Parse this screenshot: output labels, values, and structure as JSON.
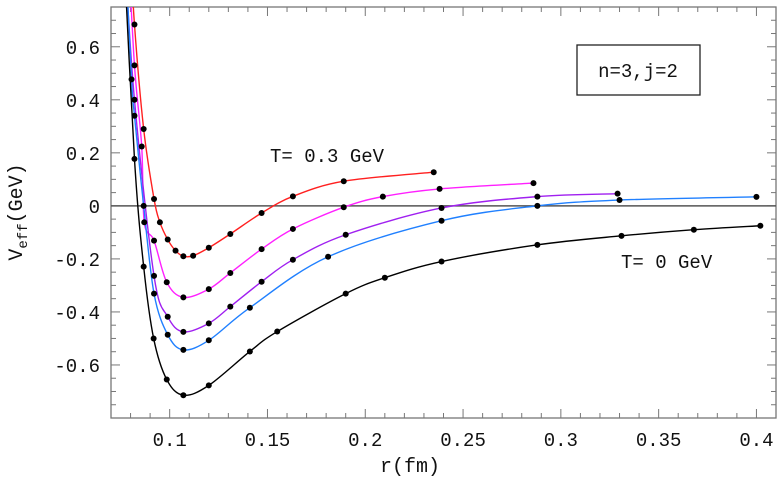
{
  "chart_data": {
    "type": "line",
    "xlabel": "r(fm)",
    "ylabel_main": "V",
    "ylabel_sub": "eff",
    "ylabel_unit": "(GeV)",
    "xlim": [
      0.07,
      0.41
    ],
    "ylim": [
      -0.8,
      0.75
    ],
    "xticks": [
      0.1,
      0.15,
      0.2,
      0.25,
      0.3,
      0.35,
      0.4
    ],
    "xtick_labels": [
      "0.1",
      "0.15",
      "0.2",
      "0.25",
      "0.3",
      "0.35",
      "0.4"
    ],
    "yticks": [
      0.6,
      0.4,
      0.2,
      0,
      -0.2,
      -0.4,
      -0.6
    ],
    "ytick_labels": [
      "0.6",
      "0.4",
      "0.2",
      "0",
      "-0.2",
      "-0.4",
      "-0.6"
    ],
    "grid": false,
    "zero_line": true,
    "legend_box": "n=3,j=2",
    "annotations": [
      "T= 0.3 GeV",
      "T= 0 GeV"
    ],
    "series": [
      {
        "color": "#ff2020",
        "x": [
          0.082,
          0.0867,
          0.092,
          0.095,
          0.099,
          0.103,
          0.107,
          0.112,
          0.12,
          0.131,
          0.147,
          0.163,
          0.189,
          0.235
        ],
        "y": [
          0.684,
          0.29,
          0.026,
          -0.062,
          -0.127,
          -0.169,
          -0.19,
          -0.188,
          -0.158,
          -0.106,
          -0.027,
          0.036,
          0.093,
          0.127
        ]
      },
      {
        "color": "#ff20ff",
        "x": [
          0.082,
          0.0857,
          0.087,
          0.092,
          0.0985,
          0.107,
          0.12,
          0.131,
          0.147,
          0.163,
          0.189,
          0.209,
          0.238,
          0.286
        ],
        "y": [
          0.53,
          0.224,
          -0.062,
          -0.131,
          -0.288,
          -0.345,
          -0.314,
          -0.253,
          -0.163,
          -0.087,
          -0.005,
          0.035,
          0.064,
          0.086
        ]
      },
      {
        "color": "#a020f0",
        "x": [
          0.082,
          0.092,
          0.099,
          0.107,
          0.12,
          0.131,
          0.147,
          0.163,
          0.19,
          0.239,
          0.288,
          0.329
        ],
        "y": [
          0.4,
          -0.264,
          -0.418,
          -0.475,
          -0.443,
          -0.38,
          -0.286,
          -0.203,
          -0.109,
          -0.008,
          0.035,
          0.046
        ]
      },
      {
        "color": "#2080ff",
        "x": [
          0.0805,
          0.082,
          0.0867,
          0.092,
          0.099,
          0.107,
          0.12,
          0.141,
          0.181,
          0.239,
          0.288,
          0.33,
          0.4
        ],
        "y": [
          0.477,
          0.34,
          0.0,
          -0.331,
          -0.486,
          -0.543,
          -0.507,
          -0.384,
          -0.192,
          -0.056,
          0.0,
          0.022,
          0.034
        ]
      },
      {
        "color": "#000000",
        "x": [
          0.082,
          0.0867,
          0.0918,
          0.0985,
          0.107,
          0.12,
          0.141,
          0.155,
          0.19,
          0.21,
          0.239,
          0.288,
          0.331,
          0.368,
          0.402
        ],
        "y": [
          0.177,
          -0.229,
          -0.5,
          -0.655,
          -0.714,
          -0.677,
          -0.549,
          -0.474,
          -0.331,
          -0.271,
          -0.21,
          -0.147,
          -0.113,
          -0.09,
          -0.075
        ]
      }
    ]
  }
}
